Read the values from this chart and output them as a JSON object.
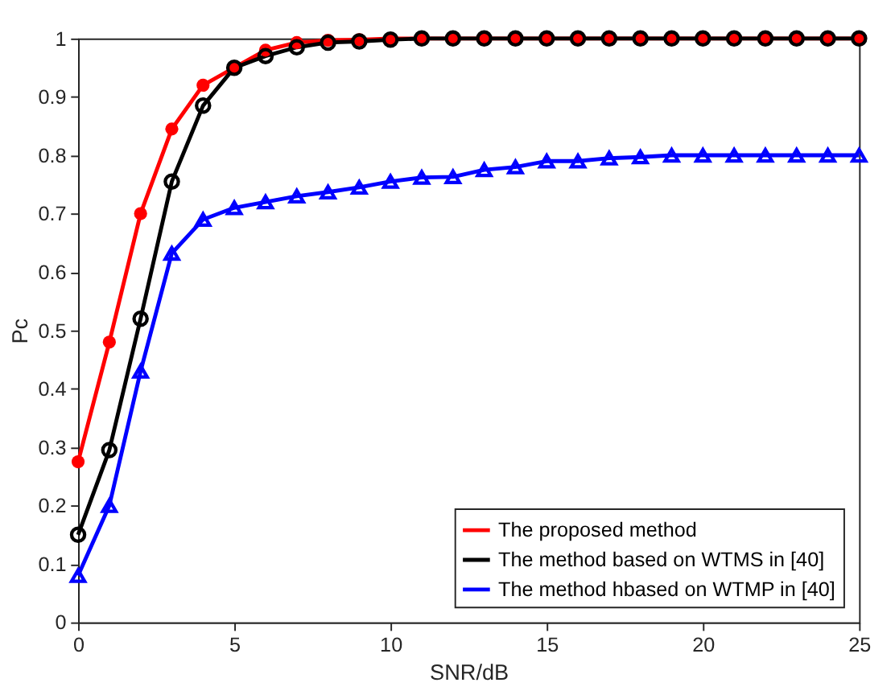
{
  "chart_data": {
    "type": "line",
    "xlabel": "SNR/dB",
    "ylabel": "Pc",
    "x": [
      0,
      1,
      2,
      3,
      4,
      5,
      6,
      7,
      8,
      9,
      10,
      11,
      12,
      13,
      14,
      15,
      16,
      17,
      18,
      19,
      20,
      21,
      22,
      23,
      24,
      25
    ],
    "series": [
      {
        "name": "The proposed method",
        "color": "#ff0000",
        "marker": "circle",
        "values": [
          0.275,
          0.48,
          0.7,
          0.845,
          0.92,
          0.95,
          0.98,
          0.993,
          0.997,
          0.998,
          1,
          1,
          1,
          1,
          1,
          1,
          1,
          1,
          1,
          1,
          1,
          1,
          1,
          1,
          1,
          1
        ]
      },
      {
        "name": "The method based on WTMS in [40]",
        "color": "#000000",
        "marker": "circle",
        "values": [
          0.15,
          0.295,
          0.52,
          0.755,
          0.885,
          0.95,
          0.97,
          0.985,
          0.993,
          0.995,
          0.998,
          1,
          1,
          1,
          1,
          1,
          1,
          1,
          1,
          1,
          1,
          1,
          1,
          1,
          1,
          1
        ]
      },
      {
        "name": "The method hbased on WTMP in [40]",
        "color": "#0000ff",
        "marker": "triangle",
        "values": [
          0.08,
          0.2,
          0.43,
          0.632,
          0.69,
          0.71,
          0.72,
          0.73,
          0.737,
          0.745,
          0.755,
          0.762,
          0.763,
          0.775,
          0.78,
          0.79,
          0.79,
          0.795,
          0.797,
          0.8,
          0.8,
          0.8,
          0.8,
          0.8,
          0.8,
          0.8
        ]
      }
    ],
    "xlim": [
      0,
      25
    ],
    "xticks": [
      0,
      5,
      10,
      15,
      20,
      25
    ],
    "ylim": [
      0,
      1
    ],
    "yticks": [
      0,
      0.1,
      0.2,
      0.3,
      0.4,
      0.5,
      0.6,
      0.7,
      0.8,
      0.9,
      1
    ],
    "grid": false,
    "legend": "bottom right",
    "line_style": "solid"
  }
}
